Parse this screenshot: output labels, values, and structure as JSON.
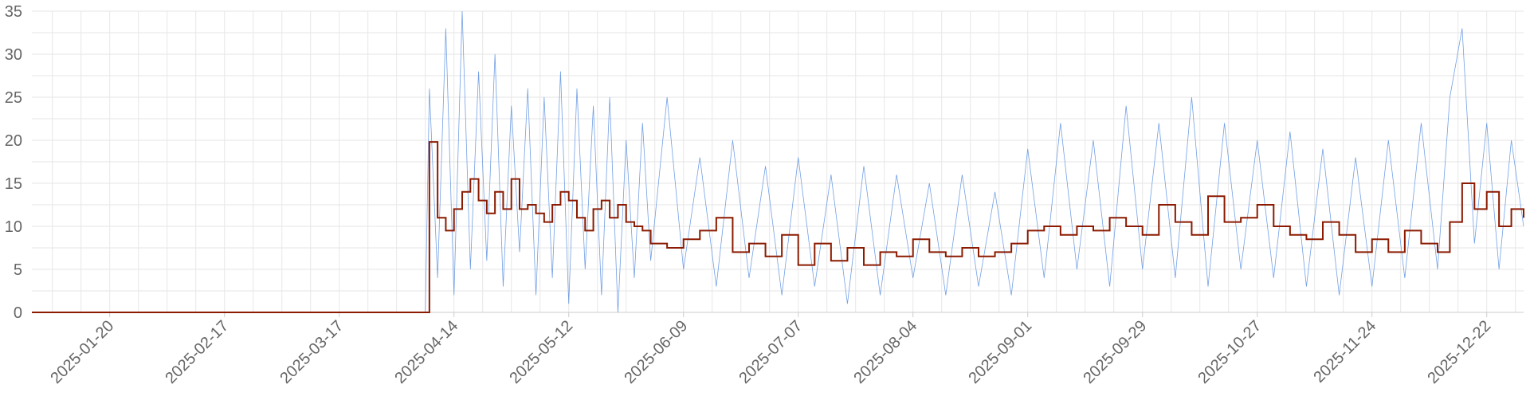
{
  "chart_data": {
    "type": "line",
    "title": "",
    "xlabel": "",
    "ylabel": "",
    "x_range": [
      "2025-01-01",
      "2025-12-31"
    ],
    "ylim": [
      0,
      35
    ],
    "y_ticks": [
      0,
      5,
      10,
      15,
      20,
      25,
      30,
      35
    ],
    "x_ticks": [
      "2025-01-20",
      "2025-02-17",
      "2025-03-17",
      "2025-04-14",
      "2025-05-12",
      "2025-06-09",
      "2025-07-07",
      "2025-08-04",
      "2025-09-01",
      "2025-09-29",
      "2025-10-27",
      "2025-11-24",
      "2025-12-22"
    ],
    "grid": true,
    "legend": "none",
    "colors": {
      "raw": "#5b8fe0",
      "average": "#8b1a00"
    },
    "series": [
      {
        "style": "thin-line",
        "x": [
          "2025-01-01",
          "2025-04-07",
          "2025-04-08",
          "2025-04-10",
          "2025-04-12",
          "2025-04-14",
          "2025-04-16",
          "2025-04-18",
          "2025-04-20",
          "2025-04-22",
          "2025-04-24",
          "2025-04-26",
          "2025-04-28",
          "2025-04-30",
          "2025-05-02",
          "2025-05-04",
          "2025-05-06",
          "2025-05-08",
          "2025-05-10",
          "2025-05-12",
          "2025-05-14",
          "2025-05-16",
          "2025-05-18",
          "2025-05-20",
          "2025-05-22",
          "2025-05-24",
          "2025-05-26",
          "2025-05-28",
          "2025-05-30",
          "2025-06-01",
          "2025-06-05",
          "2025-06-09",
          "2025-06-13",
          "2025-06-17",
          "2025-06-21",
          "2025-06-25",
          "2025-06-29",
          "2025-07-03",
          "2025-07-07",
          "2025-07-11",
          "2025-07-15",
          "2025-07-19",
          "2025-07-23",
          "2025-07-27",
          "2025-07-31",
          "2025-08-04",
          "2025-08-08",
          "2025-08-12",
          "2025-08-16",
          "2025-08-20",
          "2025-08-24",
          "2025-08-28",
          "2025-09-01",
          "2025-09-05",
          "2025-09-09",
          "2025-09-13",
          "2025-09-17",
          "2025-09-21",
          "2025-09-25",
          "2025-09-29",
          "2025-10-03",
          "2025-10-07",
          "2025-10-11",
          "2025-10-15",
          "2025-10-19",
          "2025-10-23",
          "2025-10-27",
          "2025-10-31",
          "2025-11-04",
          "2025-11-08",
          "2025-11-12",
          "2025-11-16",
          "2025-11-20",
          "2025-11-24",
          "2025-11-28",
          "2025-12-02",
          "2025-12-06",
          "2025-12-10",
          "2025-12-13",
          "2025-12-16",
          "2025-12-19",
          "2025-12-22",
          "2025-12-25",
          "2025-12-28",
          "2025-12-31"
        ],
        "values": [
          0,
          0,
          26,
          4,
          33,
          2,
          35,
          5,
          28,
          6,
          30,
          3,
          24,
          7,
          26,
          2,
          25,
          4,
          28,
          1,
          26,
          5,
          24,
          2,
          25,
          0,
          20,
          4,
          22,
          6,
          25,
          5,
          18,
          3,
          20,
          4,
          17,
          2,
          18,
          3,
          16,
          1,
          17,
          2,
          16,
          4,
          15,
          2,
          16,
          3,
          14,
          2,
          19,
          4,
          22,
          5,
          20,
          3,
          24,
          5,
          22,
          4,
          25,
          3,
          22,
          5,
          20,
          4,
          21,
          3,
          19,
          2,
          18,
          3,
          20,
          4,
          22,
          5,
          25,
          33,
          8,
          22,
          5,
          20,
          10
        ]
      },
      {
        "style": "thick-line",
        "x": [
          "2025-01-01",
          "2025-04-07",
          "2025-04-08",
          "2025-04-10",
          "2025-04-12",
          "2025-04-14",
          "2025-04-16",
          "2025-04-18",
          "2025-04-20",
          "2025-04-22",
          "2025-04-24",
          "2025-04-26",
          "2025-04-28",
          "2025-04-30",
          "2025-05-02",
          "2025-05-04",
          "2025-05-06",
          "2025-05-08",
          "2025-05-10",
          "2025-05-12",
          "2025-05-14",
          "2025-05-16",
          "2025-05-18",
          "2025-05-20",
          "2025-05-22",
          "2025-05-24",
          "2025-05-26",
          "2025-05-28",
          "2025-05-30",
          "2025-06-01",
          "2025-06-05",
          "2025-06-09",
          "2025-06-13",
          "2025-06-17",
          "2025-06-21",
          "2025-06-25",
          "2025-06-29",
          "2025-07-03",
          "2025-07-07",
          "2025-07-11",
          "2025-07-15",
          "2025-07-19",
          "2025-07-23",
          "2025-07-27",
          "2025-07-31",
          "2025-08-04",
          "2025-08-08",
          "2025-08-12",
          "2025-08-16",
          "2025-08-20",
          "2025-08-24",
          "2025-08-28",
          "2025-09-01",
          "2025-09-05",
          "2025-09-09",
          "2025-09-13",
          "2025-09-17",
          "2025-09-21",
          "2025-09-25",
          "2025-09-29",
          "2025-10-03",
          "2025-10-07",
          "2025-10-11",
          "2025-10-15",
          "2025-10-19",
          "2025-10-23",
          "2025-10-27",
          "2025-10-31",
          "2025-11-04",
          "2025-11-08",
          "2025-11-12",
          "2025-11-16",
          "2025-11-20",
          "2025-11-24",
          "2025-11-28",
          "2025-12-02",
          "2025-12-06",
          "2025-12-10",
          "2025-12-13",
          "2025-12-16",
          "2025-12-19",
          "2025-12-22",
          "2025-12-25",
          "2025-12-28",
          "2025-12-31"
        ],
        "values": [
          0,
          0,
          19.8,
          11,
          9.5,
          12,
          14,
          15.5,
          13,
          11.5,
          14,
          12,
          15.5,
          12,
          12.5,
          11.5,
          10.5,
          12.5,
          14,
          13,
          11,
          9.5,
          12,
          13,
          11,
          12.5,
          10.5,
          10,
          9.5,
          8,
          7.5,
          8.5,
          9.5,
          11,
          7,
          8,
          6.5,
          9,
          5.5,
          8,
          6,
          7.5,
          5.5,
          7,
          6.5,
          8.5,
          7,
          6.5,
          7.5,
          6.5,
          7,
          8,
          9.5,
          10,
          9,
          10,
          9.5,
          11,
          10,
          9,
          12.5,
          10.5,
          9,
          13.5,
          10.5,
          11,
          12.5,
          10,
          9,
          8.5,
          10.5,
          9,
          7,
          8.5,
          7,
          9.5,
          8,
          7,
          10.5,
          15,
          12,
          14,
          10,
          12,
          11
        ]
      }
    ]
  }
}
